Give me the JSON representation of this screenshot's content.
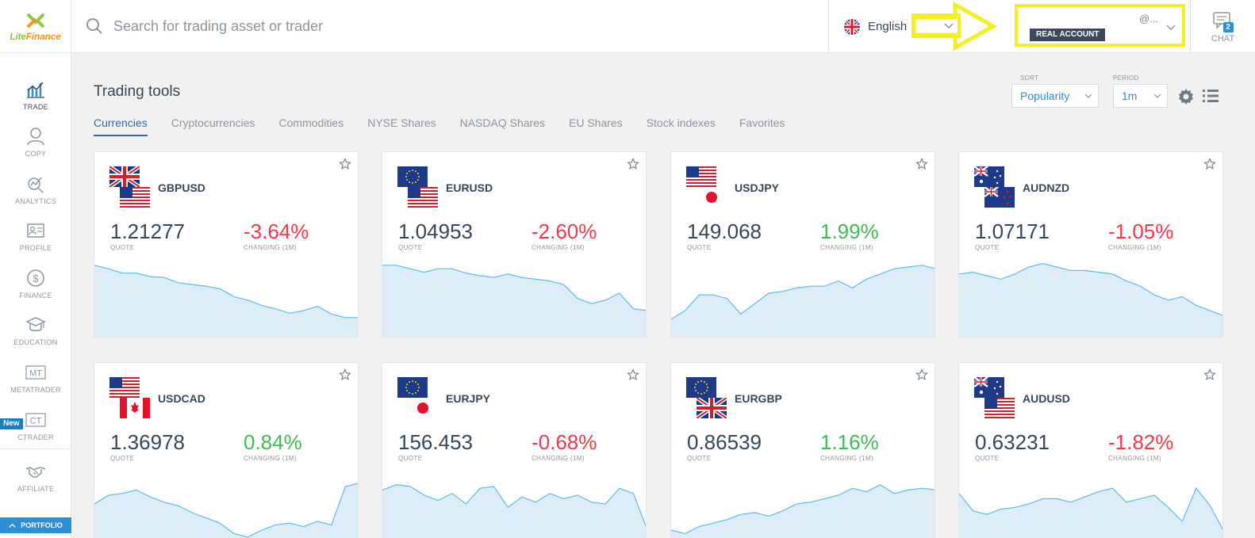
{
  "brand": {
    "logo_text_a": "Lite",
    "logo_text_b": "Finance"
  },
  "search": {
    "placeholder": "Search for trading asset or trader"
  },
  "language": {
    "label": "English"
  },
  "account": {
    "email": "@...",
    "type": "REAL ACCOUNT"
  },
  "chat": {
    "label": "CHAT",
    "unread": "2"
  },
  "sidebar": {
    "items": [
      {
        "label": "TRADE",
        "icon": "chart-icon"
      },
      {
        "label": "COPY",
        "icon": "user-icon"
      },
      {
        "label": "ANALYTICS",
        "icon": "analytics-icon"
      },
      {
        "label": "PROFILE",
        "icon": "id-card-icon"
      },
      {
        "label": "FINANCE",
        "icon": "dollar-icon"
      },
      {
        "label": "EDUCATION",
        "icon": "graduation-cap-icon"
      },
      {
        "label": "METATRADER",
        "icon": "mt-icon"
      },
      {
        "label": "CTRADER",
        "icon": "ct-icon"
      },
      {
        "label": "AFFILIATE",
        "icon": "handshake-icon"
      }
    ],
    "new_badge": "New",
    "portfolio": "PORTFOLIO"
  },
  "main": {
    "title": "Trading tools",
    "tabs": [
      "Currencies",
      "Cryptocurrencies",
      "Commodities",
      "NYSE Shares",
      "NASDAQ Shares",
      "EU Shares",
      "Stock indexes",
      "Favorites"
    ],
    "sort": {
      "label": "SORT",
      "value": "Popularity"
    },
    "period": {
      "label": "PERIOD",
      "value": "1m"
    }
  },
  "labels": {
    "quote": "QUOTE",
    "changing": "CHANGING (1M)"
  },
  "colors": {
    "accent": "#2d8fd5",
    "negative": "#f23a4a",
    "positive": "#3fbd55",
    "highlight": "#f5ef1d",
    "spark_fill": "#dcedf8",
    "spark_line": "#58bde8"
  },
  "instruments": [
    {
      "symbol": "GBPUSD",
      "quote": "1.21277",
      "change": "-3.64%",
      "direction": "neg",
      "flags": [
        "uk",
        "us"
      ],
      "spark": [
        0.82,
        0.78,
        0.73,
        0.73,
        0.69,
        0.68,
        0.62,
        0.6,
        0.58,
        0.55,
        0.46,
        0.42,
        0.36,
        0.32,
        0.27,
        0.3,
        0.35,
        0.26,
        0.22,
        0.22
      ]
    },
    {
      "symbol": "EURUSD",
      "quote": "1.04953",
      "change": "-2.60%",
      "direction": "neg",
      "flags": [
        "eu",
        "us"
      ],
      "spark": [
        0.82,
        0.82,
        0.78,
        0.74,
        0.78,
        0.78,
        0.73,
        0.7,
        0.68,
        0.72,
        0.68,
        0.66,
        0.64,
        0.6,
        0.44,
        0.38,
        0.42,
        0.5,
        0.32,
        0.3
      ]
    },
    {
      "symbol": "USDJPY",
      "quote": "149.068",
      "change": "1.99%",
      "direction": "pos",
      "flags": [
        "us",
        "jp"
      ],
      "spark": [
        0.2,
        0.3,
        0.48,
        0.48,
        0.44,
        0.26,
        0.38,
        0.5,
        0.52,
        0.56,
        0.58,
        0.58,
        0.64,
        0.56,
        0.66,
        0.72,
        0.78,
        0.8,
        0.82,
        0.78
      ]
    },
    {
      "symbol": "AUDNZD",
      "quote": "1.07171",
      "change": "-1.05%",
      "direction": "neg",
      "flags": [
        "au",
        "nz"
      ],
      "spark": [
        0.72,
        0.74,
        0.7,
        0.66,
        0.72,
        0.8,
        0.84,
        0.8,
        0.76,
        0.76,
        0.74,
        0.72,
        0.64,
        0.58,
        0.48,
        0.42,
        0.46,
        0.36,
        0.3,
        0.24
      ]
    },
    {
      "symbol": "USDCAD",
      "quote": "1.36978",
      "change": "0.84%",
      "direction": "pos",
      "flags": [
        "us",
        "ca"
      ],
      "spark": [
        0.5,
        0.6,
        0.62,
        0.66,
        0.58,
        0.52,
        0.48,
        0.4,
        0.34,
        0.28,
        0.16,
        0.12,
        0.2,
        0.26,
        0.28,
        0.24,
        0.3,
        0.26,
        0.7,
        0.74
      ]
    },
    {
      "symbol": "EURJPY",
      "quote": "156.453",
      "change": "-0.68%",
      "direction": "neg",
      "flags": [
        "eu",
        "jp"
      ],
      "spark": [
        0.66,
        0.72,
        0.7,
        0.6,
        0.54,
        0.62,
        0.5,
        0.68,
        0.7,
        0.46,
        0.58,
        0.52,
        0.62,
        0.56,
        0.6,
        0.52,
        0.5,
        0.68,
        0.62,
        0.2
      ]
    },
    {
      "symbol": "EURGBP",
      "quote": "0.86539",
      "change": "1.16%",
      "direction": "pos",
      "flags": [
        "eu",
        "uk"
      ],
      "spark": [
        0.2,
        0.16,
        0.24,
        0.28,
        0.32,
        0.38,
        0.4,
        0.36,
        0.42,
        0.5,
        0.52,
        0.56,
        0.6,
        0.68,
        0.64,
        0.72,
        0.62,
        0.66,
        0.68,
        0.66
      ]
    },
    {
      "symbol": "AUDUSD",
      "quote": "0.63231",
      "change": "-1.82%",
      "direction": "neg",
      "flags": [
        "au",
        "us"
      ],
      "spark": [
        0.62,
        0.42,
        0.38,
        0.44,
        0.46,
        0.5,
        0.56,
        0.56,
        0.52,
        0.58,
        0.64,
        0.68,
        0.52,
        0.56,
        0.6,
        0.46,
        0.3,
        0.68,
        0.48,
        0.18
      ]
    }
  ]
}
